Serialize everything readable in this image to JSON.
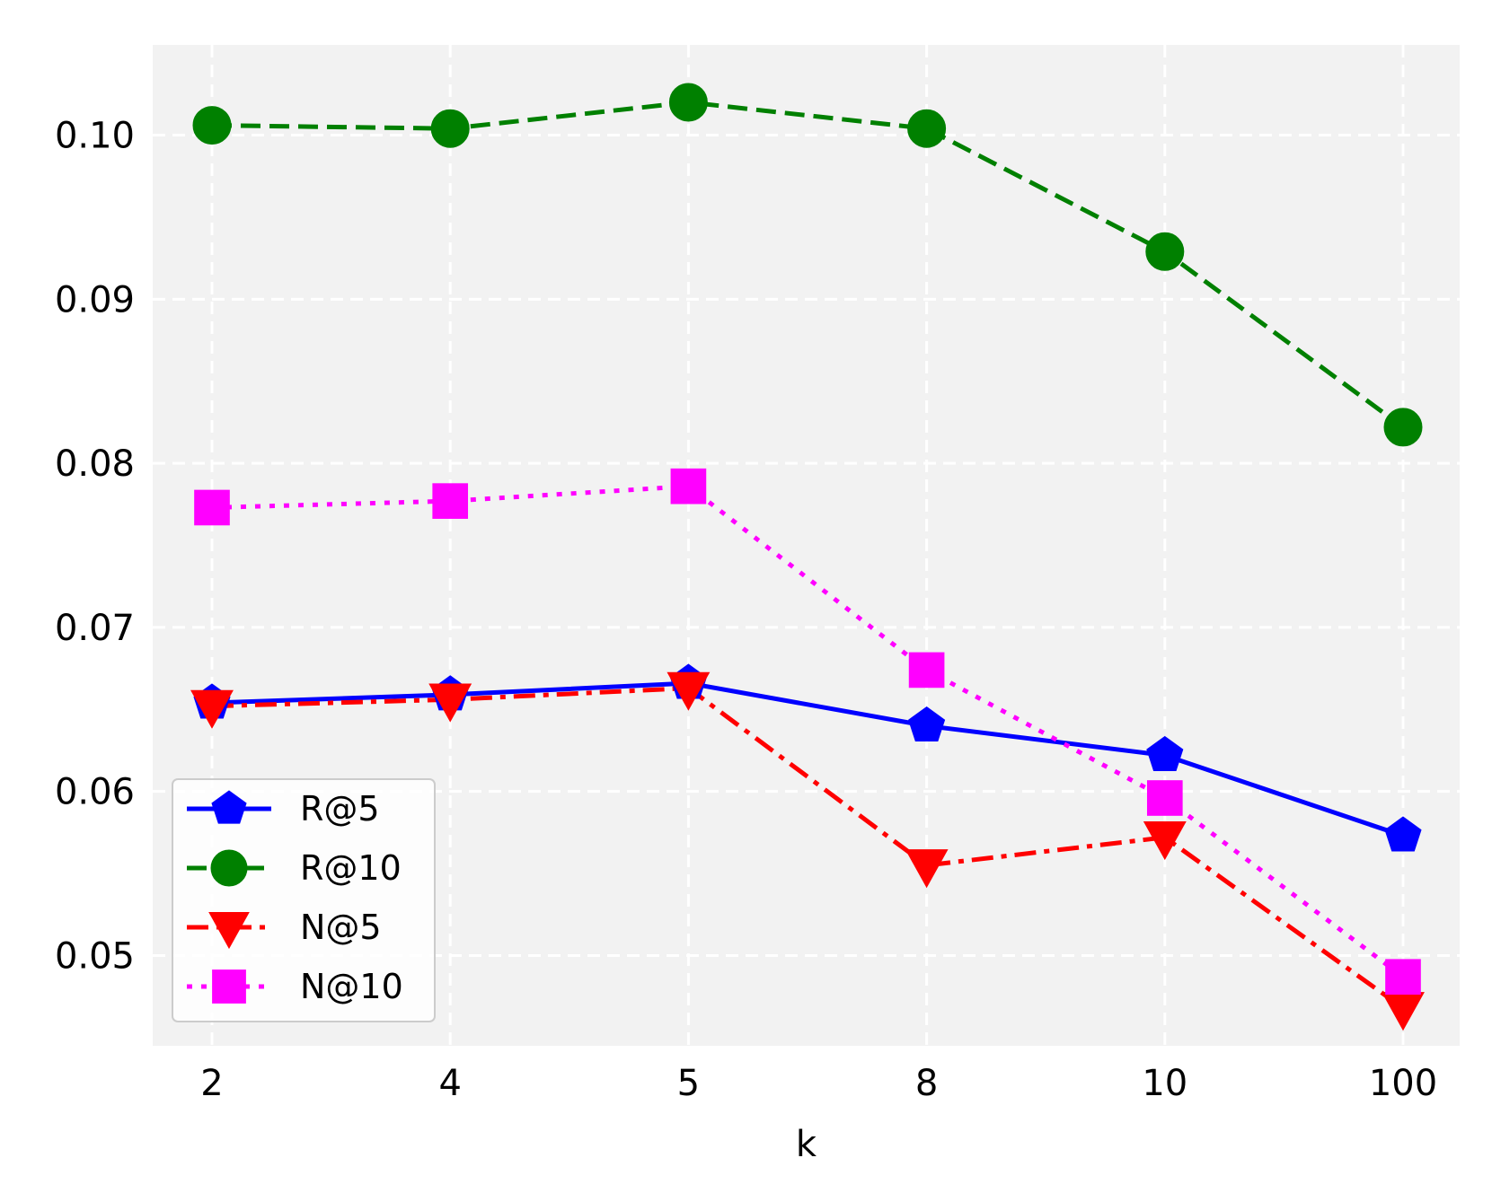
{
  "chart_data": {
    "type": "line",
    "title": "",
    "xlabel": "k",
    "ylabel": "",
    "categories": [
      "2",
      "4",
      "5",
      "8",
      "10",
      "100"
    ],
    "y_ticks": [
      0.05,
      0.06,
      0.07,
      0.08,
      0.09,
      0.1
    ],
    "y_tick_labels": [
      "0.05",
      "0.06",
      "0.07",
      "0.08",
      "0.09",
      "0.10"
    ],
    "ylim": [
      0.0445,
      0.1055
    ],
    "grid": true,
    "legend_position": "lower-left",
    "background_color": "#f2f2f2",
    "series": [
      {
        "name": "R@5",
        "values": [
          0.0654,
          0.0659,
          0.0666,
          0.064,
          0.0622,
          0.0573
        ],
        "color": "#0000ff",
        "line_style": "solid",
        "marker": "pentagon"
      },
      {
        "name": "R@10",
        "values": [
          0.1006,
          0.1004,
          0.102,
          0.1004,
          0.0929,
          0.0822
        ],
        "color": "#008000",
        "line_style": "dashed",
        "marker": "circle"
      },
      {
        "name": "N@5",
        "values": [
          0.0652,
          0.0656,
          0.0663,
          0.0555,
          0.0572,
          0.0468
        ],
        "color": "#ff0000",
        "line_style": "dashdot",
        "marker": "triangle-down"
      },
      {
        "name": "N@10",
        "values": [
          0.0773,
          0.0777,
          0.0786,
          0.0674,
          0.0596,
          0.0487
        ],
        "color": "#ff00ff",
        "line_style": "dotted",
        "marker": "square"
      }
    ]
  }
}
